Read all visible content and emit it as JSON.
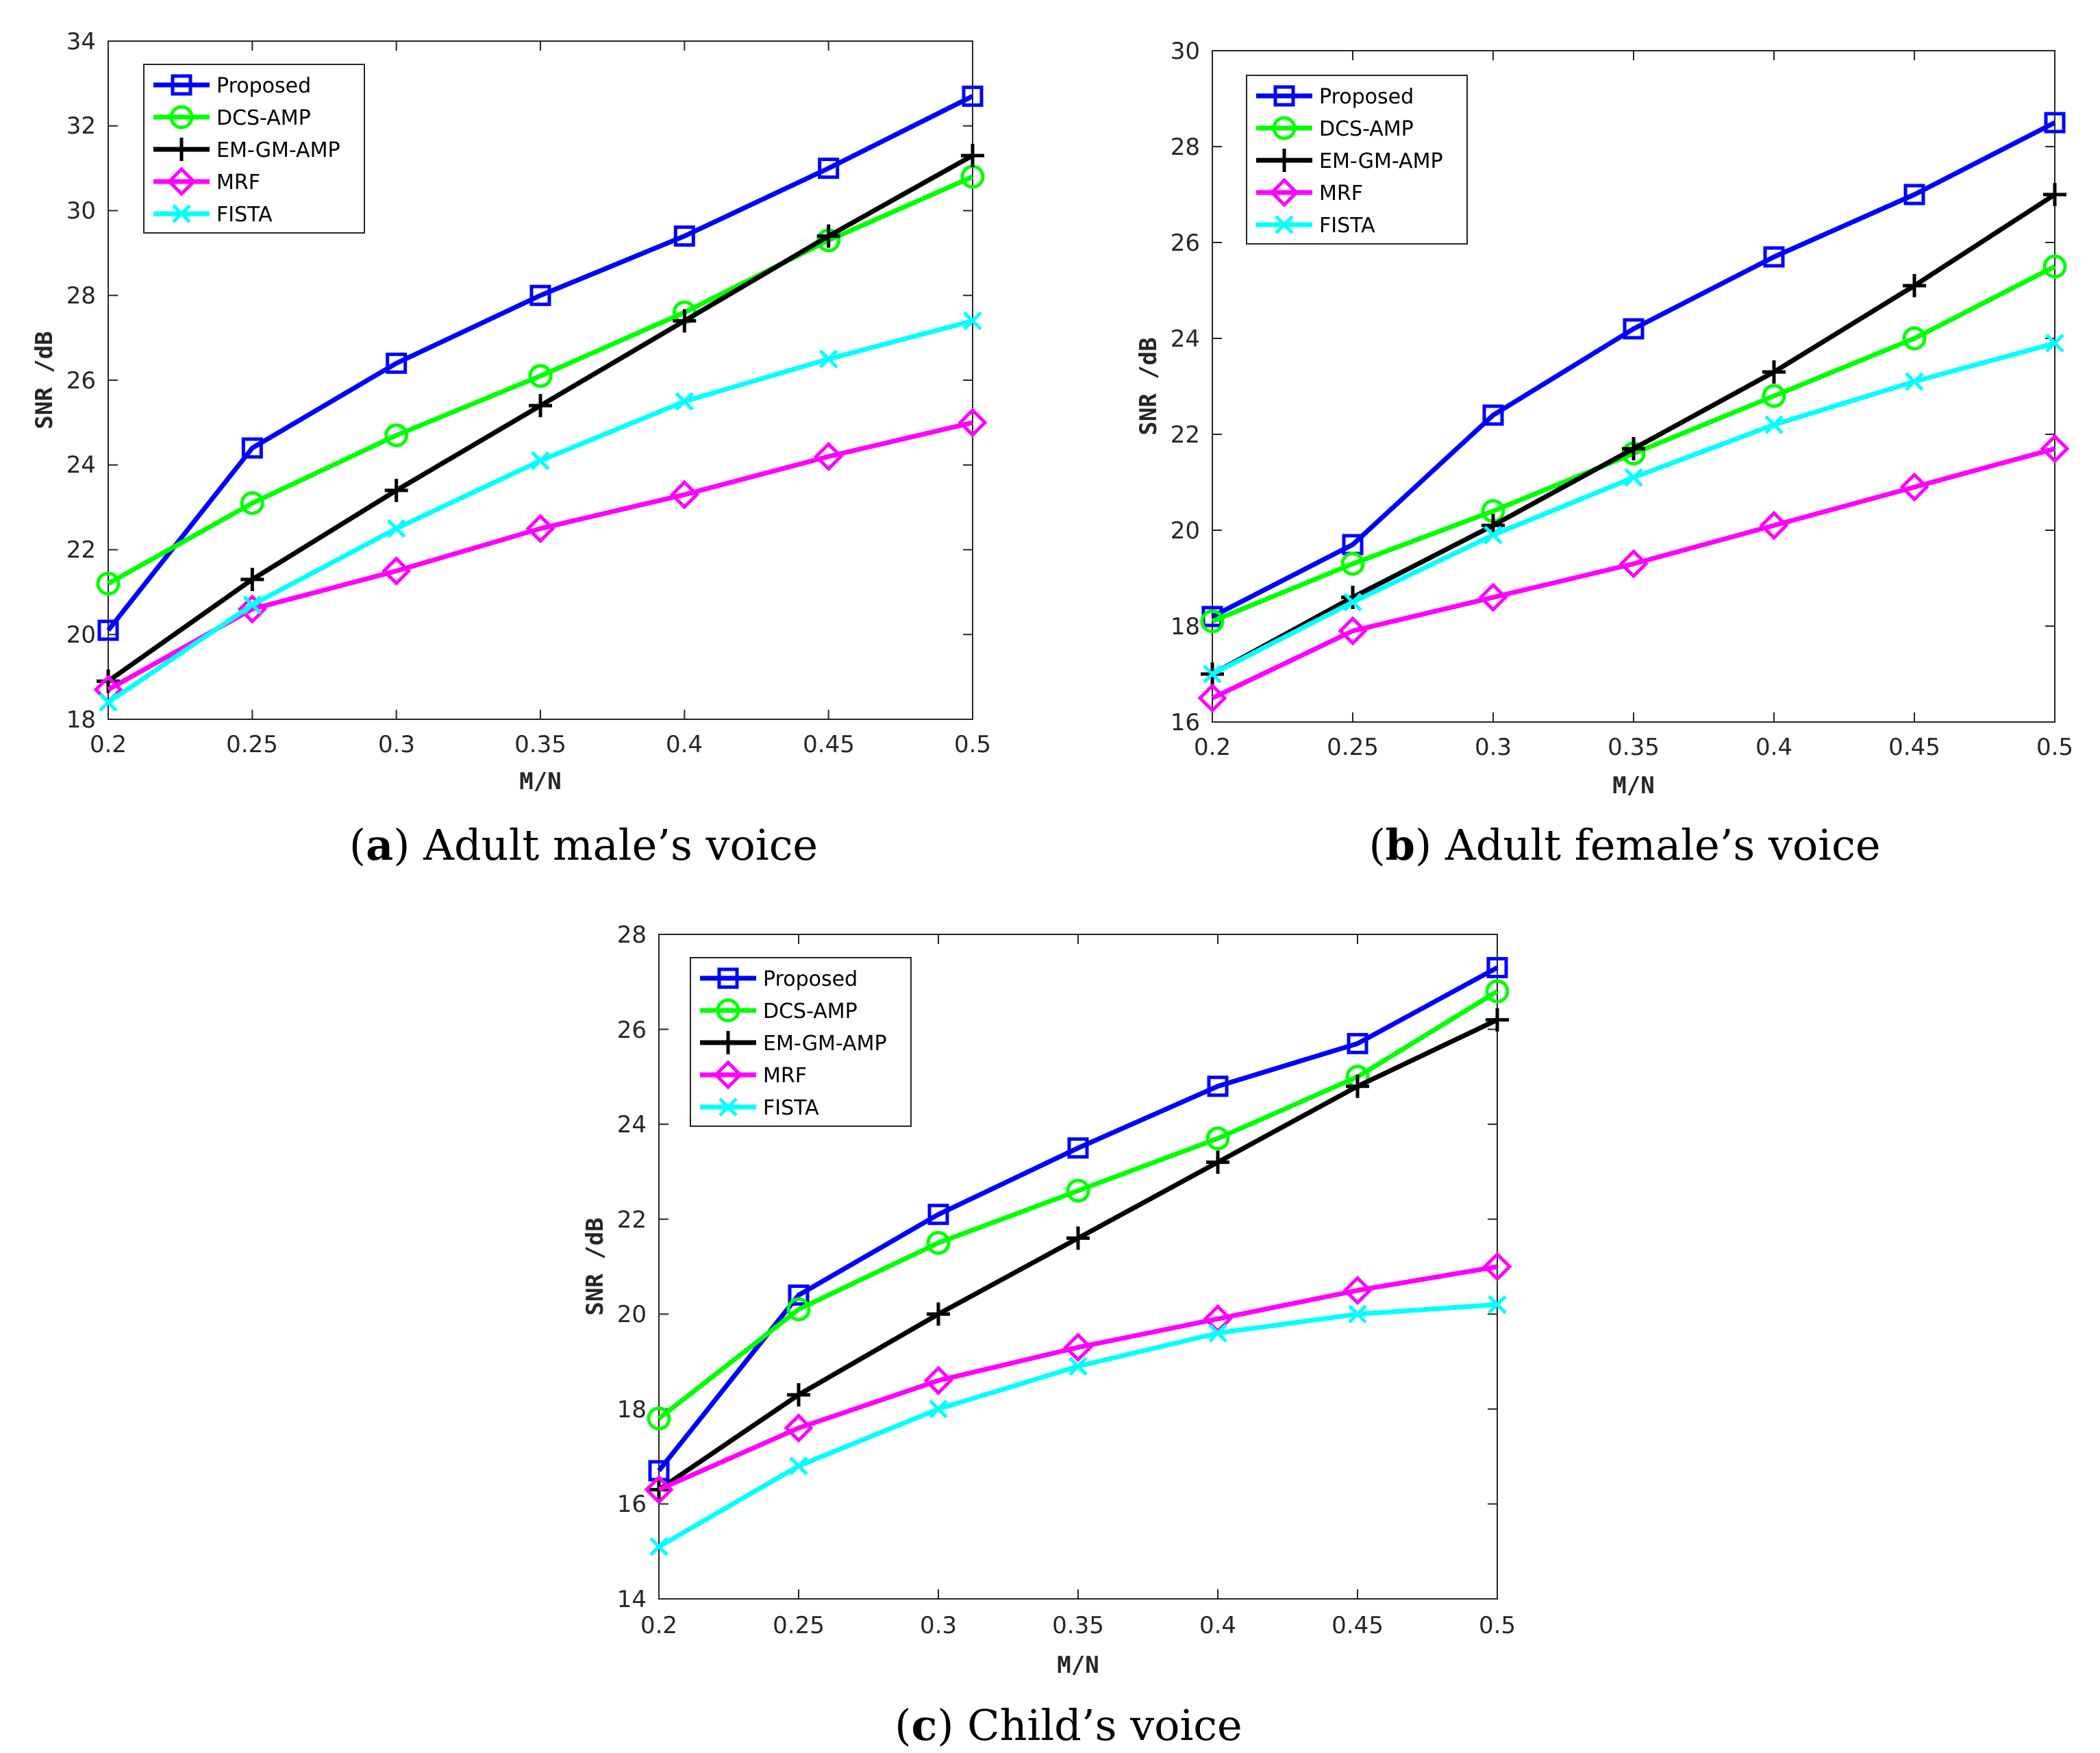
{
  "colors": {
    "Proposed": "#0000ff",
    "DCS-AMP": "#00ff00",
    "EM-GM-AMP": "#000000",
    "MRF": "#ff00ff",
    "FISTA": "#00ffff"
  },
  "legend_order": [
    "Proposed",
    "DCS-AMP",
    "EM-GM-AMP",
    "MRF",
    "FISTA"
  ],
  "chart_data": [
    {
      "id": "a",
      "type": "line",
      "caption_letter": "a",
      "caption_text": "Adult male’s voice",
      "xlabel": "M/N",
      "ylabel": "SNR  /dB",
      "xlim": [
        0.2,
        0.5
      ],
      "ylim": [
        18,
        34
      ],
      "xticks": [
        "0.2",
        "0.25",
        "0.3",
        "0.35",
        "0.4",
        "0.45",
        "0.5"
      ],
      "yticks": [
        "18",
        "20",
        "22",
        "24",
        "26",
        "28",
        "30",
        "32",
        "34"
      ],
      "legend_position": "top-left",
      "x": [
        0.2,
        0.25,
        0.3,
        0.35,
        0.4,
        0.45,
        0.5
      ],
      "series": [
        {
          "name": "Proposed",
          "marker": "square",
          "values": [
            20.1,
            24.4,
            26.4,
            28.0,
            29.4,
            31.0,
            32.7
          ]
        },
        {
          "name": "DCS-AMP",
          "marker": "circle",
          "values": [
            21.2,
            23.1,
            24.7,
            26.1,
            27.6,
            29.3,
            30.8
          ]
        },
        {
          "name": "EM-GM-AMP",
          "marker": "plus",
          "values": [
            18.9,
            21.3,
            23.4,
            25.4,
            27.4,
            29.4,
            31.3
          ]
        },
        {
          "name": "MRF",
          "marker": "diamond",
          "values": [
            18.7,
            20.6,
            21.5,
            22.5,
            23.3,
            24.2,
            25.0
          ]
        },
        {
          "name": "FISTA",
          "marker": "x",
          "values": [
            18.4,
            20.7,
            22.5,
            24.1,
            25.5,
            26.5,
            27.4
          ]
        }
      ]
    },
    {
      "id": "b",
      "type": "line",
      "caption_letter": "b",
      "caption_text": "Adult female’s voice",
      "xlabel": "M/N",
      "ylabel": "SNR  /dB",
      "xlim": [
        0.2,
        0.5
      ],
      "ylim": [
        16,
        30
      ],
      "xticks": [
        "0.2",
        "0.25",
        "0.3",
        "0.35",
        "0.4",
        "0.45",
        "0.5"
      ],
      "yticks": [
        "16",
        "18",
        "20",
        "22",
        "24",
        "26",
        "28",
        "30"
      ],
      "legend_position": "top-left",
      "x": [
        0.2,
        0.25,
        0.3,
        0.35,
        0.4,
        0.45,
        0.5
      ],
      "series": [
        {
          "name": "Proposed",
          "marker": "square",
          "values": [
            18.2,
            19.7,
            22.4,
            24.2,
            25.7,
            27.0,
            28.5
          ]
        },
        {
          "name": "DCS-AMP",
          "marker": "circle",
          "values": [
            18.1,
            19.3,
            20.4,
            21.6,
            22.8,
            24.0,
            25.5
          ]
        },
        {
          "name": "EM-GM-AMP",
          "marker": "plus",
          "values": [
            17.0,
            18.6,
            20.1,
            21.7,
            23.3,
            25.1,
            27.0
          ]
        },
        {
          "name": "MRF",
          "marker": "diamond",
          "values": [
            16.5,
            17.9,
            18.6,
            19.3,
            20.1,
            20.9,
            21.7
          ]
        },
        {
          "name": "FISTA",
          "marker": "x",
          "values": [
            17.0,
            18.5,
            19.9,
            21.1,
            22.2,
            23.1,
            23.9
          ]
        }
      ]
    },
    {
      "id": "c",
      "type": "line",
      "caption_letter": "c",
      "caption_text": "Child’s voice",
      "xlabel": "M/N",
      "ylabel": "SNR  /dB",
      "xlim": [
        0.2,
        0.5
      ],
      "ylim": [
        14,
        28
      ],
      "xticks": [
        "0.2",
        "0.25",
        "0.3",
        "0.35",
        "0.4",
        "0.45",
        "0.5"
      ],
      "yticks": [
        "14",
        "16",
        "18",
        "20",
        "22",
        "24",
        "26",
        "28"
      ],
      "legend_position": "top-left",
      "x": [
        0.2,
        0.25,
        0.3,
        0.35,
        0.4,
        0.45,
        0.5
      ],
      "series": [
        {
          "name": "Proposed",
          "marker": "square",
          "values": [
            16.7,
            20.4,
            22.1,
            23.5,
            24.8,
            25.7,
            27.3
          ]
        },
        {
          "name": "DCS-AMP",
          "marker": "circle",
          "values": [
            17.8,
            20.1,
            21.5,
            22.6,
            23.7,
            25.0,
            26.8
          ]
        },
        {
          "name": "EM-GM-AMP",
          "marker": "plus",
          "values": [
            16.3,
            18.3,
            20.0,
            21.6,
            23.2,
            24.8,
            26.2
          ]
        },
        {
          "name": "MRF",
          "marker": "diamond",
          "values": [
            16.3,
            17.6,
            18.6,
            19.3,
            19.9,
            20.5,
            21.0
          ]
        },
        {
          "name": "FISTA",
          "marker": "x",
          "values": [
            15.1,
            16.8,
            18.0,
            18.9,
            19.6,
            20.0,
            20.2
          ]
        }
      ]
    }
  ]
}
